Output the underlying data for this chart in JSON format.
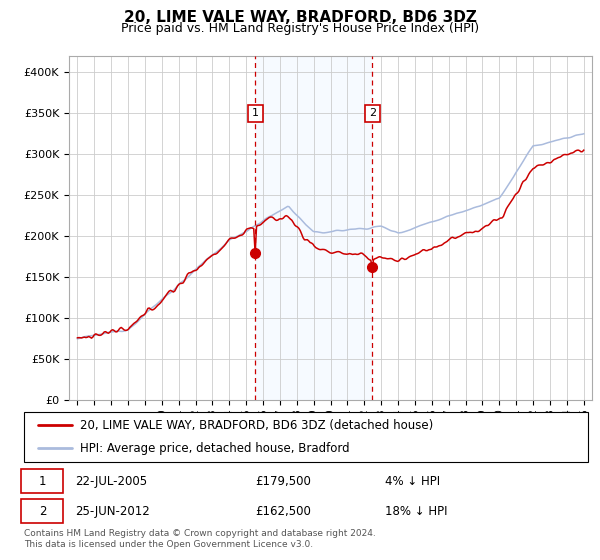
{
  "title": "20, LIME VALE WAY, BRADFORD, BD6 3DZ",
  "subtitle": "Price paid vs. HM Land Registry's House Price Index (HPI)",
  "hpi_color": "#aabbdd",
  "price_color": "#cc0000",
  "shade_color": "#ddeeff",
  "grid_color": "#cccccc",
  "background_color": "#ffffff",
  "sale1_date_num": 2005.55,
  "sale2_date_num": 2012.48,
  "sale1_label": "1",
  "sale2_label": "2",
  "sale1_price": 179500,
  "sale2_price": 162500,
  "legend_entry1": "20, LIME VALE WAY, BRADFORD, BD6 3DZ (detached house)",
  "legend_entry2": "HPI: Average price, detached house, Bradford",
  "ylim": [
    0,
    420000
  ],
  "xlim_start": 1994.5,
  "xlim_end": 2025.5,
  "footnote": "Contains HM Land Registry data © Crown copyright and database right 2024.\nThis data is licensed under the Open Government Licence v3.0."
}
